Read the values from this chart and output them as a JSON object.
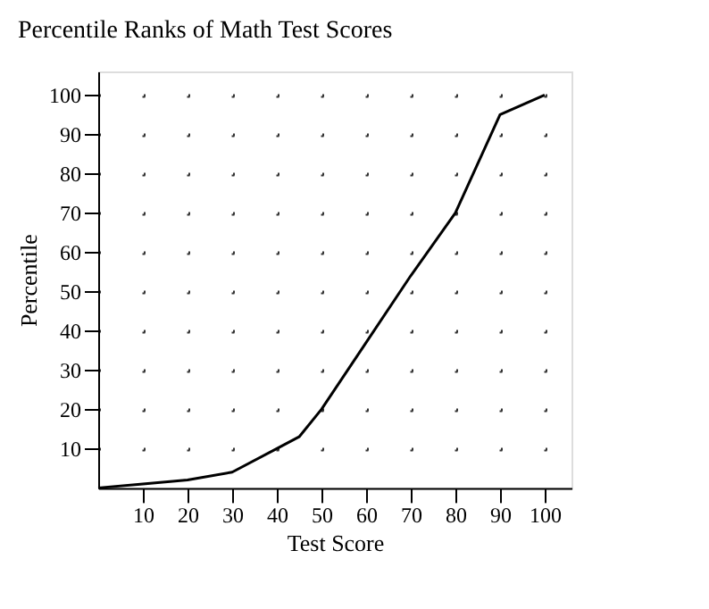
{
  "chart_data": {
    "type": "line",
    "title": "Percentile Ranks of Math Test Scores",
    "xlabel": "Test Score",
    "ylabel": "Percentile",
    "x": [
      0,
      10,
      20,
      30,
      40,
      45,
      50,
      60,
      70,
      80,
      90,
      100
    ],
    "series": [
      {
        "color": "#000000",
        "values": [
          0,
          1,
          2,
          4,
          10,
          13,
          20,
          37,
          54,
          70,
          95,
          100
        ]
      }
    ],
    "xlim": [
      0,
      106
    ],
    "ylim": [
      0,
      106
    ],
    "xticks": [
      10,
      20,
      30,
      40,
      50,
      60,
      70,
      80,
      90,
      100
    ],
    "yticks": [
      10,
      20,
      30,
      40,
      50,
      60,
      70,
      80,
      90,
      100
    ],
    "grid": true,
    "marker": "none",
    "line_style": "solid"
  }
}
